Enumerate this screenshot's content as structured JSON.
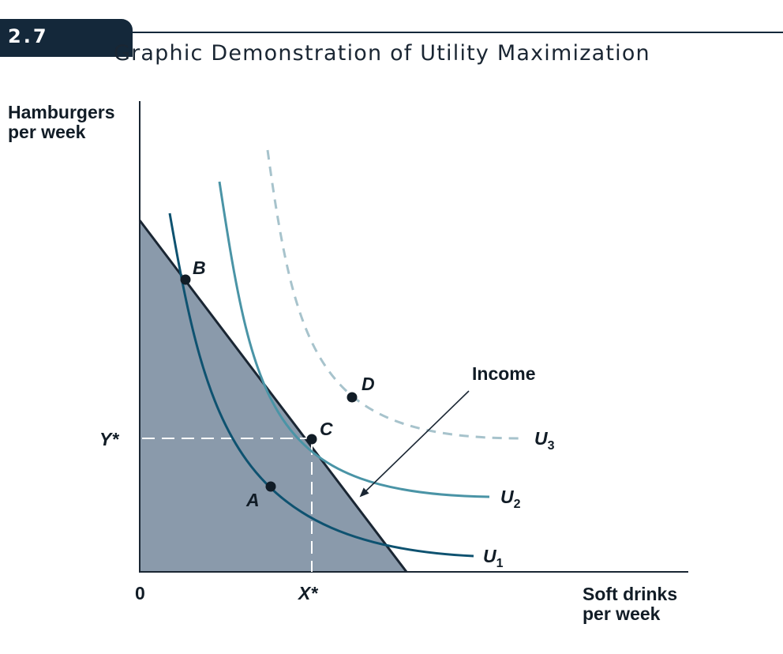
{
  "figure": {
    "number": "2.7",
    "title": "Graphic Demonstration of Utility Maximization"
  },
  "axes": {
    "y_label_line1": "Hamburgers",
    "y_label_line2": "per week",
    "x_label_line1": "Soft drinks",
    "x_label_line2": "per week",
    "origin": "0",
    "x_star": "X*",
    "y_star": "Y*"
  },
  "points": {
    "a": "A",
    "b": "B",
    "c": "C",
    "d": "D"
  },
  "curves": {
    "u1": {
      "base": "U",
      "sub": "1"
    },
    "u2": {
      "base": "U",
      "sub": "2"
    },
    "u3": {
      "base": "U",
      "sub": "3"
    }
  },
  "annotations": {
    "income": "Income"
  },
  "colors": {
    "budget_fill": "#8a9aab",
    "budget_line": "#1a2633",
    "u1": "#0e5270",
    "u2": "#4a94a6",
    "u3": "#a7c3cc",
    "header_dark": "#14283a"
  }
}
